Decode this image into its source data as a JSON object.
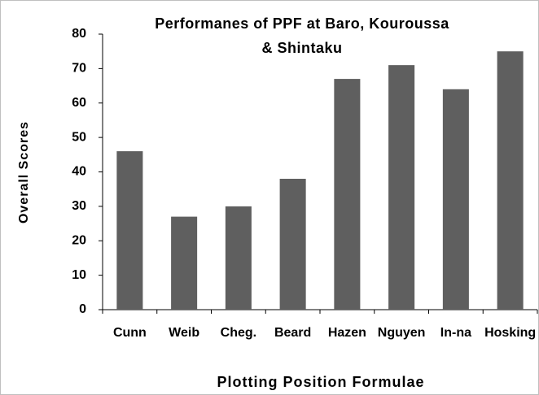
{
  "chart_data": {
    "type": "bar",
    "title": "Performanes of PPF at Baro, Kouroussa & Shintaku",
    "x_label": "Plotting Position Formulae",
    "y_label": "Overall Scores",
    "categories": [
      "Cunn",
      "Weib",
      "Cheg.",
      "Beard",
      "Hazen",
      "Nguyen",
      "In-na",
      "Hosking"
    ],
    "values": [
      46,
      27,
      30,
      38,
      67,
      71,
      64,
      75
    ],
    "color": "#5f5f5f",
    "ylim": [
      0,
      80
    ],
    "yticks": [
      0,
      10,
      20,
      30,
      40,
      50,
      60,
      70,
      80
    ],
    "grid": false
  }
}
